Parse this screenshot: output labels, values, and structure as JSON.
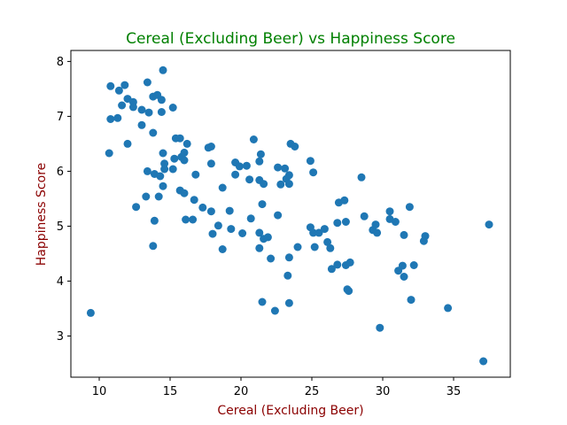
{
  "chart_data": {
    "type": "scatter",
    "title": "Cereal (Excluding Beer) vs Happiness Score",
    "xlabel": "Cereal (Excluding Beer)",
    "ylabel": "Happiness Score",
    "xlim": [
      8,
      39
    ],
    "ylim": [
      2.25,
      8.2
    ],
    "xticks": [
      "10",
      "15",
      "20",
      "25",
      "30",
      "35"
    ],
    "yticks": [
      "3",
      "4",
      "5",
      "6",
      "7",
      "8"
    ],
    "grid": false,
    "colors": {
      "title": "#008000",
      "axis_label": "#8b0000",
      "points": "#1f77b4"
    },
    "points": [
      [
        9.4,
        3.42
      ],
      [
        10.7,
        6.33
      ],
      [
        10.8,
        7.55
      ],
      [
        10.8,
        6.95
      ],
      [
        11.3,
        6.97
      ],
      [
        11.4,
        7.47
      ],
      [
        11.6,
        7.2
      ],
      [
        11.8,
        7.57
      ],
      [
        12.0,
        7.32
      ],
      [
        12.0,
        6.5
      ],
      [
        12.4,
        7.26
      ],
      [
        12.4,
        7.17
      ],
      [
        12.6,
        5.35
      ],
      [
        13.0,
        7.12
      ],
      [
        13.0,
        6.84
      ],
      [
        13.3,
        5.54
      ],
      [
        13.4,
        7.62
      ],
      [
        13.4,
        6.0
      ],
      [
        13.5,
        7.07
      ],
      [
        13.8,
        7.36
      ],
      [
        13.8,
        6.7
      ],
      [
        13.8,
        4.64
      ],
      [
        13.9,
        5.1
      ],
      [
        13.9,
        5.95
      ],
      [
        14.1,
        7.39
      ],
      [
        14.2,
        5.54
      ],
      [
        14.3,
        5.91
      ],
      [
        14.4,
        7.3
      ],
      [
        14.4,
        7.08
      ],
      [
        14.5,
        7.84
      ],
      [
        14.5,
        6.33
      ],
      [
        14.5,
        5.73
      ],
      [
        14.6,
        6.14
      ],
      [
        14.6,
        6.04
      ],
      [
        15.2,
        6.04
      ],
      [
        15.2,
        7.16
      ],
      [
        15.3,
        6.23
      ],
      [
        15.4,
        6.6
      ],
      [
        15.7,
        6.6
      ],
      [
        15.7,
        5.65
      ],
      [
        15.8,
        6.26
      ],
      [
        16.0,
        6.34
      ],
      [
        16.0,
        6.2
      ],
      [
        16.0,
        5.6
      ],
      [
        16.1,
        5.12
      ],
      [
        16.2,
        6.5
      ],
      [
        16.6,
        5.12
      ],
      [
        16.7,
        5.48
      ],
      [
        16.8,
        5.94
      ],
      [
        17.3,
        5.34
      ],
      [
        17.7,
        6.43
      ],
      [
        17.9,
        6.45
      ],
      [
        17.9,
        6.14
      ],
      [
        17.9,
        5.27
      ],
      [
        18.0,
        4.86
      ],
      [
        18.4,
        5.01
      ],
      [
        18.7,
        5.7
      ],
      [
        18.7,
        4.58
      ],
      [
        19.2,
        5.28
      ],
      [
        19.3,
        4.95
      ],
      [
        19.6,
        6.16
      ],
      [
        19.6,
        5.94
      ],
      [
        19.9,
        6.09
      ],
      [
        20.1,
        4.87
      ],
      [
        20.4,
        6.1
      ],
      [
        20.6,
        5.85
      ],
      [
        20.7,
        5.14
      ],
      [
        20.9,
        6.58
      ],
      [
        21.3,
        6.18
      ],
      [
        21.3,
        5.84
      ],
      [
        21.3,
        4.88
      ],
      [
        21.3,
        4.6
      ],
      [
        21.4,
        6.31
      ],
      [
        21.5,
        5.4
      ],
      [
        21.5,
        3.62
      ],
      [
        21.6,
        5.77
      ],
      [
        21.6,
        4.77
      ],
      [
        21.9,
        4.8
      ],
      [
        22.1,
        4.41
      ],
      [
        22.4,
        3.46
      ],
      [
        22.6,
        6.07
      ],
      [
        22.6,
        5.2
      ],
      [
        22.8,
        5.76
      ],
      [
        23.1,
        6.05
      ],
      [
        23.2,
        5.86
      ],
      [
        23.3,
        4.1
      ],
      [
        23.4,
        5.93
      ],
      [
        23.4,
        5.77
      ],
      [
        23.4,
        4.43
      ],
      [
        23.4,
        3.6
      ],
      [
        23.5,
        6.5
      ],
      [
        23.8,
        6.45
      ],
      [
        24.0,
        4.62
      ],
      [
        24.9,
        6.19
      ],
      [
        24.9,
        4.98
      ],
      [
        25.1,
        5.98
      ],
      [
        25.1,
        4.88
      ],
      [
        25.2,
        4.62
      ],
      [
        25.5,
        4.88
      ],
      [
        25.9,
        4.95
      ],
      [
        26.1,
        4.71
      ],
      [
        26.3,
        4.6
      ],
      [
        26.4,
        4.22
      ],
      [
        26.8,
        4.3
      ],
      [
        26.8,
        5.06
      ],
      [
        26.9,
        5.43
      ],
      [
        27.3,
        5.47
      ],
      [
        27.4,
        5.08
      ],
      [
        27.4,
        4.29
      ],
      [
        27.5,
        3.85
      ],
      [
        27.6,
        3.82
      ],
      [
        27.7,
        4.34
      ],
      [
        28.5,
        5.89
      ],
      [
        28.7,
        5.18
      ],
      [
        29.3,
        4.93
      ],
      [
        29.5,
        5.03
      ],
      [
        29.6,
        4.88
      ],
      [
        29.8,
        3.15
      ],
      [
        30.5,
        5.27
      ],
      [
        30.5,
        5.13
      ],
      [
        30.9,
        5.08
      ],
      [
        31.1,
        4.19
      ],
      [
        31.4,
        4.28
      ],
      [
        31.5,
        4.84
      ],
      [
        31.5,
        4.08
      ],
      [
        31.9,
        5.35
      ],
      [
        32.0,
        3.66
      ],
      [
        32.2,
        4.29
      ],
      [
        32.9,
        4.73
      ],
      [
        33.0,
        4.82
      ],
      [
        34.6,
        3.51
      ],
      [
        37.1,
        2.54
      ],
      [
        37.5,
        5.03
      ]
    ]
  }
}
